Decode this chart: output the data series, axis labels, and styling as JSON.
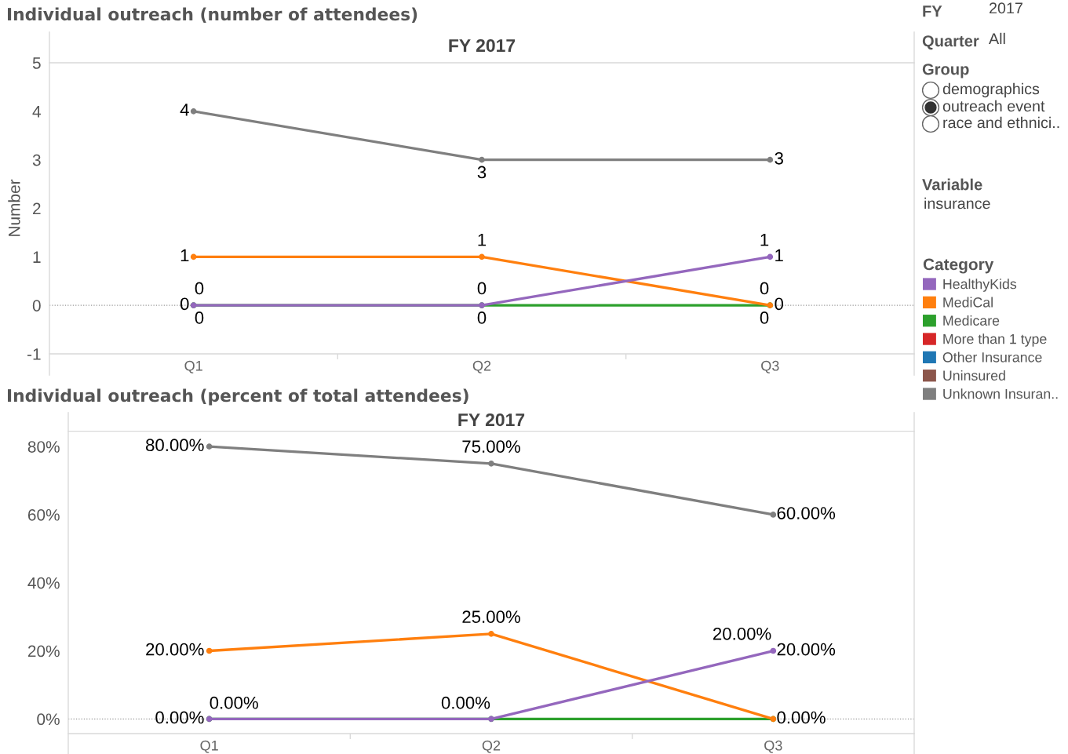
{
  "chart_data": [
    {
      "type": "line",
      "title": "Individual outreach (number of attendees)",
      "subtitle": "FY 2017",
      "ylabel": "Number",
      "legend_title": "Category",
      "categories": [
        "Q1",
        "Q2",
        "Q3"
      ],
      "series": [
        {
          "name": "HealthyKids",
          "color": "#9467bd",
          "values": [
            0,
            0,
            1
          ]
        },
        {
          "name": "MediCal",
          "color": "#ff7f0e",
          "values": [
            1,
            1,
            0
          ]
        },
        {
          "name": "Medicare",
          "color": "#2ca02c",
          "values": [
            0,
            0,
            0
          ]
        },
        {
          "name": "More than 1 type",
          "color": "#d62728",
          "values": [
            null,
            null,
            null
          ]
        },
        {
          "name": "Other Insurance",
          "color": "#1f77b4",
          "values": [
            null,
            null,
            null
          ]
        },
        {
          "name": "Uninsured",
          "color": "#8c564b",
          "values": [
            null,
            null,
            null
          ]
        },
        {
          "name": "Unknown Insuran..",
          "color": "#7f7f7f",
          "values": [
            4,
            3,
            3
          ]
        }
      ],
      "ylim": [
        -1,
        5
      ],
      "yticks": [
        -1,
        0,
        1,
        2,
        3,
        4,
        5
      ],
      "data_labels": true,
      "marker": "circle",
      "line_style": "solid",
      "legend": "right",
      "ref_lines": [
        {
          "axis": "y",
          "value": 0,
          "color": "#999999",
          "line_style": "dotted"
        }
      ],
      "annotations": [
        {
          "text": "0",
          "x": "Q1",
          "y": 0
        },
        {
          "text": "1",
          "x": "Q3",
          "y": 1
        },
        {
          "text": "0",
          "x": "Q3",
          "y": 0
        }
      ]
    },
    {
      "type": "other",
      "title": "FY",
      "annotations": [
        "2017"
      ]
    },
    {
      "type": "other",
      "title": "Quarter",
      "annotations": [
        "All"
      ]
    },
    {
      "type": "other",
      "title": "Group",
      "annotations": [
        "demographics",
        "outreach event",
        "race and ethnici.."
      ]
    },
    {
      "type": "other",
      "title": "Variable",
      "annotations": [
        "insurance"
      ]
    },
    {
      "type": "line",
      "title": "Individual outreach (percent of total attendees)",
      "subtitle": "FY 2017",
      "categories": [
        "Q1",
        "Q2",
        "Q3"
      ],
      "series": [
        {
          "name": "HealthyKids",
          "color": "#9467bd",
          "values": [
            0,
            0,
            20
          ],
          "value_labels": [
            "0.00%",
            "0.00%",
            "20.00%"
          ]
        },
        {
          "name": "MediCal",
          "color": "#ff7f0e",
          "values": [
            20,
            25,
            0
          ],
          "value_labels": [
            "20.00%",
            "25.00%",
            "0.00%"
          ]
        },
        {
          "name": "Medicare",
          "color": "#2ca02c",
          "values": [
            0,
            0,
            0
          ],
          "value_labels": [
            "0.00%",
            null,
            null
          ]
        },
        {
          "name": "Unknown Insuran..",
          "color": "#7f7f7f",
          "values": [
            80,
            75,
            60
          ],
          "value_labels": [
            "80.00%",
            "75.00%",
            "60.00%"
          ]
        }
      ],
      "ylim": [
        -4.3,
        84.5
      ],
      "yticks": [
        {
          "value": 0,
          "label": "0%"
        },
        {
          "value": 20,
          "label": "20%"
        },
        {
          "value": 40,
          "label": "40%"
        },
        {
          "value": 60,
          "label": "60%"
        },
        {
          "value": 80,
          "label": "80%"
        }
      ],
      "marker": "circle",
      "line_style": "solid",
      "ref_lines": [
        {
          "axis": "y",
          "value": 0,
          "color": "#999999",
          "line_style": "dotted"
        }
      ],
      "annotations": [
        {
          "text": "20.00%",
          "x": "Q3",
          "y": 20
        }
      ]
    }
  ]
}
